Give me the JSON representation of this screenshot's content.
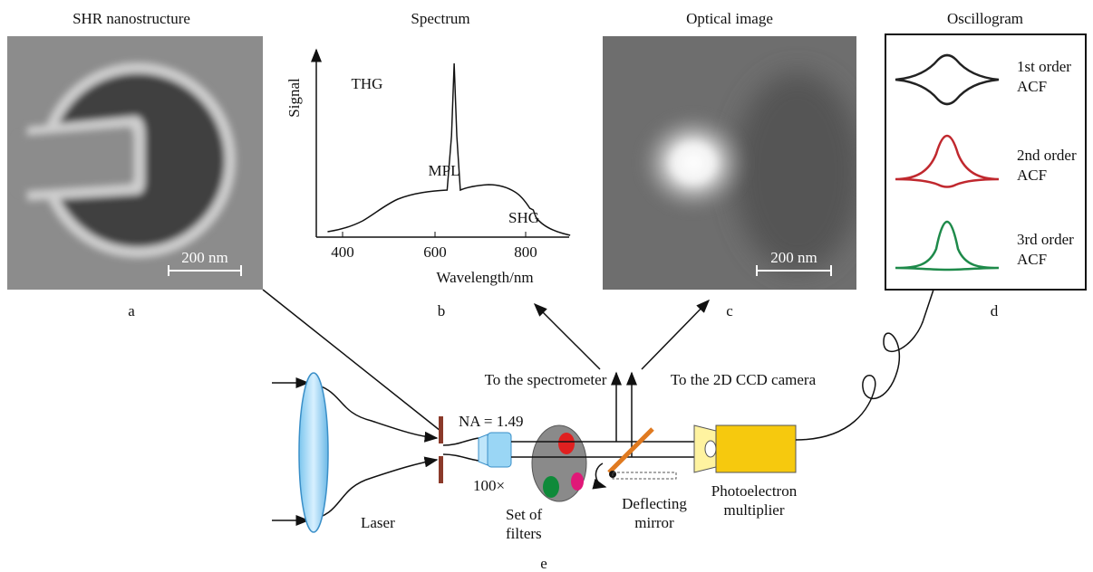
{
  "panels": {
    "a": {
      "title": "SHR nanostructure",
      "scale_bar": "200 nm",
      "label": "a"
    },
    "b": {
      "title": "Spectrum",
      "y_axis_label": "Signal",
      "x_axis_label": "Wavelength/nm",
      "x_ticks": [
        400,
        600,
        800
      ],
      "peaks": [
        "THG",
        "MPL",
        "SHG"
      ],
      "label": "b"
    },
    "c": {
      "title": "Optical image",
      "scale_bar": "200 nm",
      "label": "c"
    },
    "d": {
      "title": "Oscillogram",
      "traces": [
        [
          "1st order",
          "ACF"
        ],
        [
          "2nd order",
          "ACF"
        ],
        [
          "3rd order",
          "ACF"
        ]
      ],
      "label": "d"
    }
  },
  "setup": {
    "to_spectrometer": "To the spectrometer",
    "to_camera": "To the 2D CCD camera",
    "aperture": "NA = 1.49",
    "magnification": "100×",
    "laser": "Laser",
    "filters": [
      "Set of",
      "filters"
    ],
    "mirror": [
      "Deflecting",
      "mirror"
    ],
    "detector": [
      "Photoelectron",
      "multiplier"
    ],
    "label": "e"
  }
}
